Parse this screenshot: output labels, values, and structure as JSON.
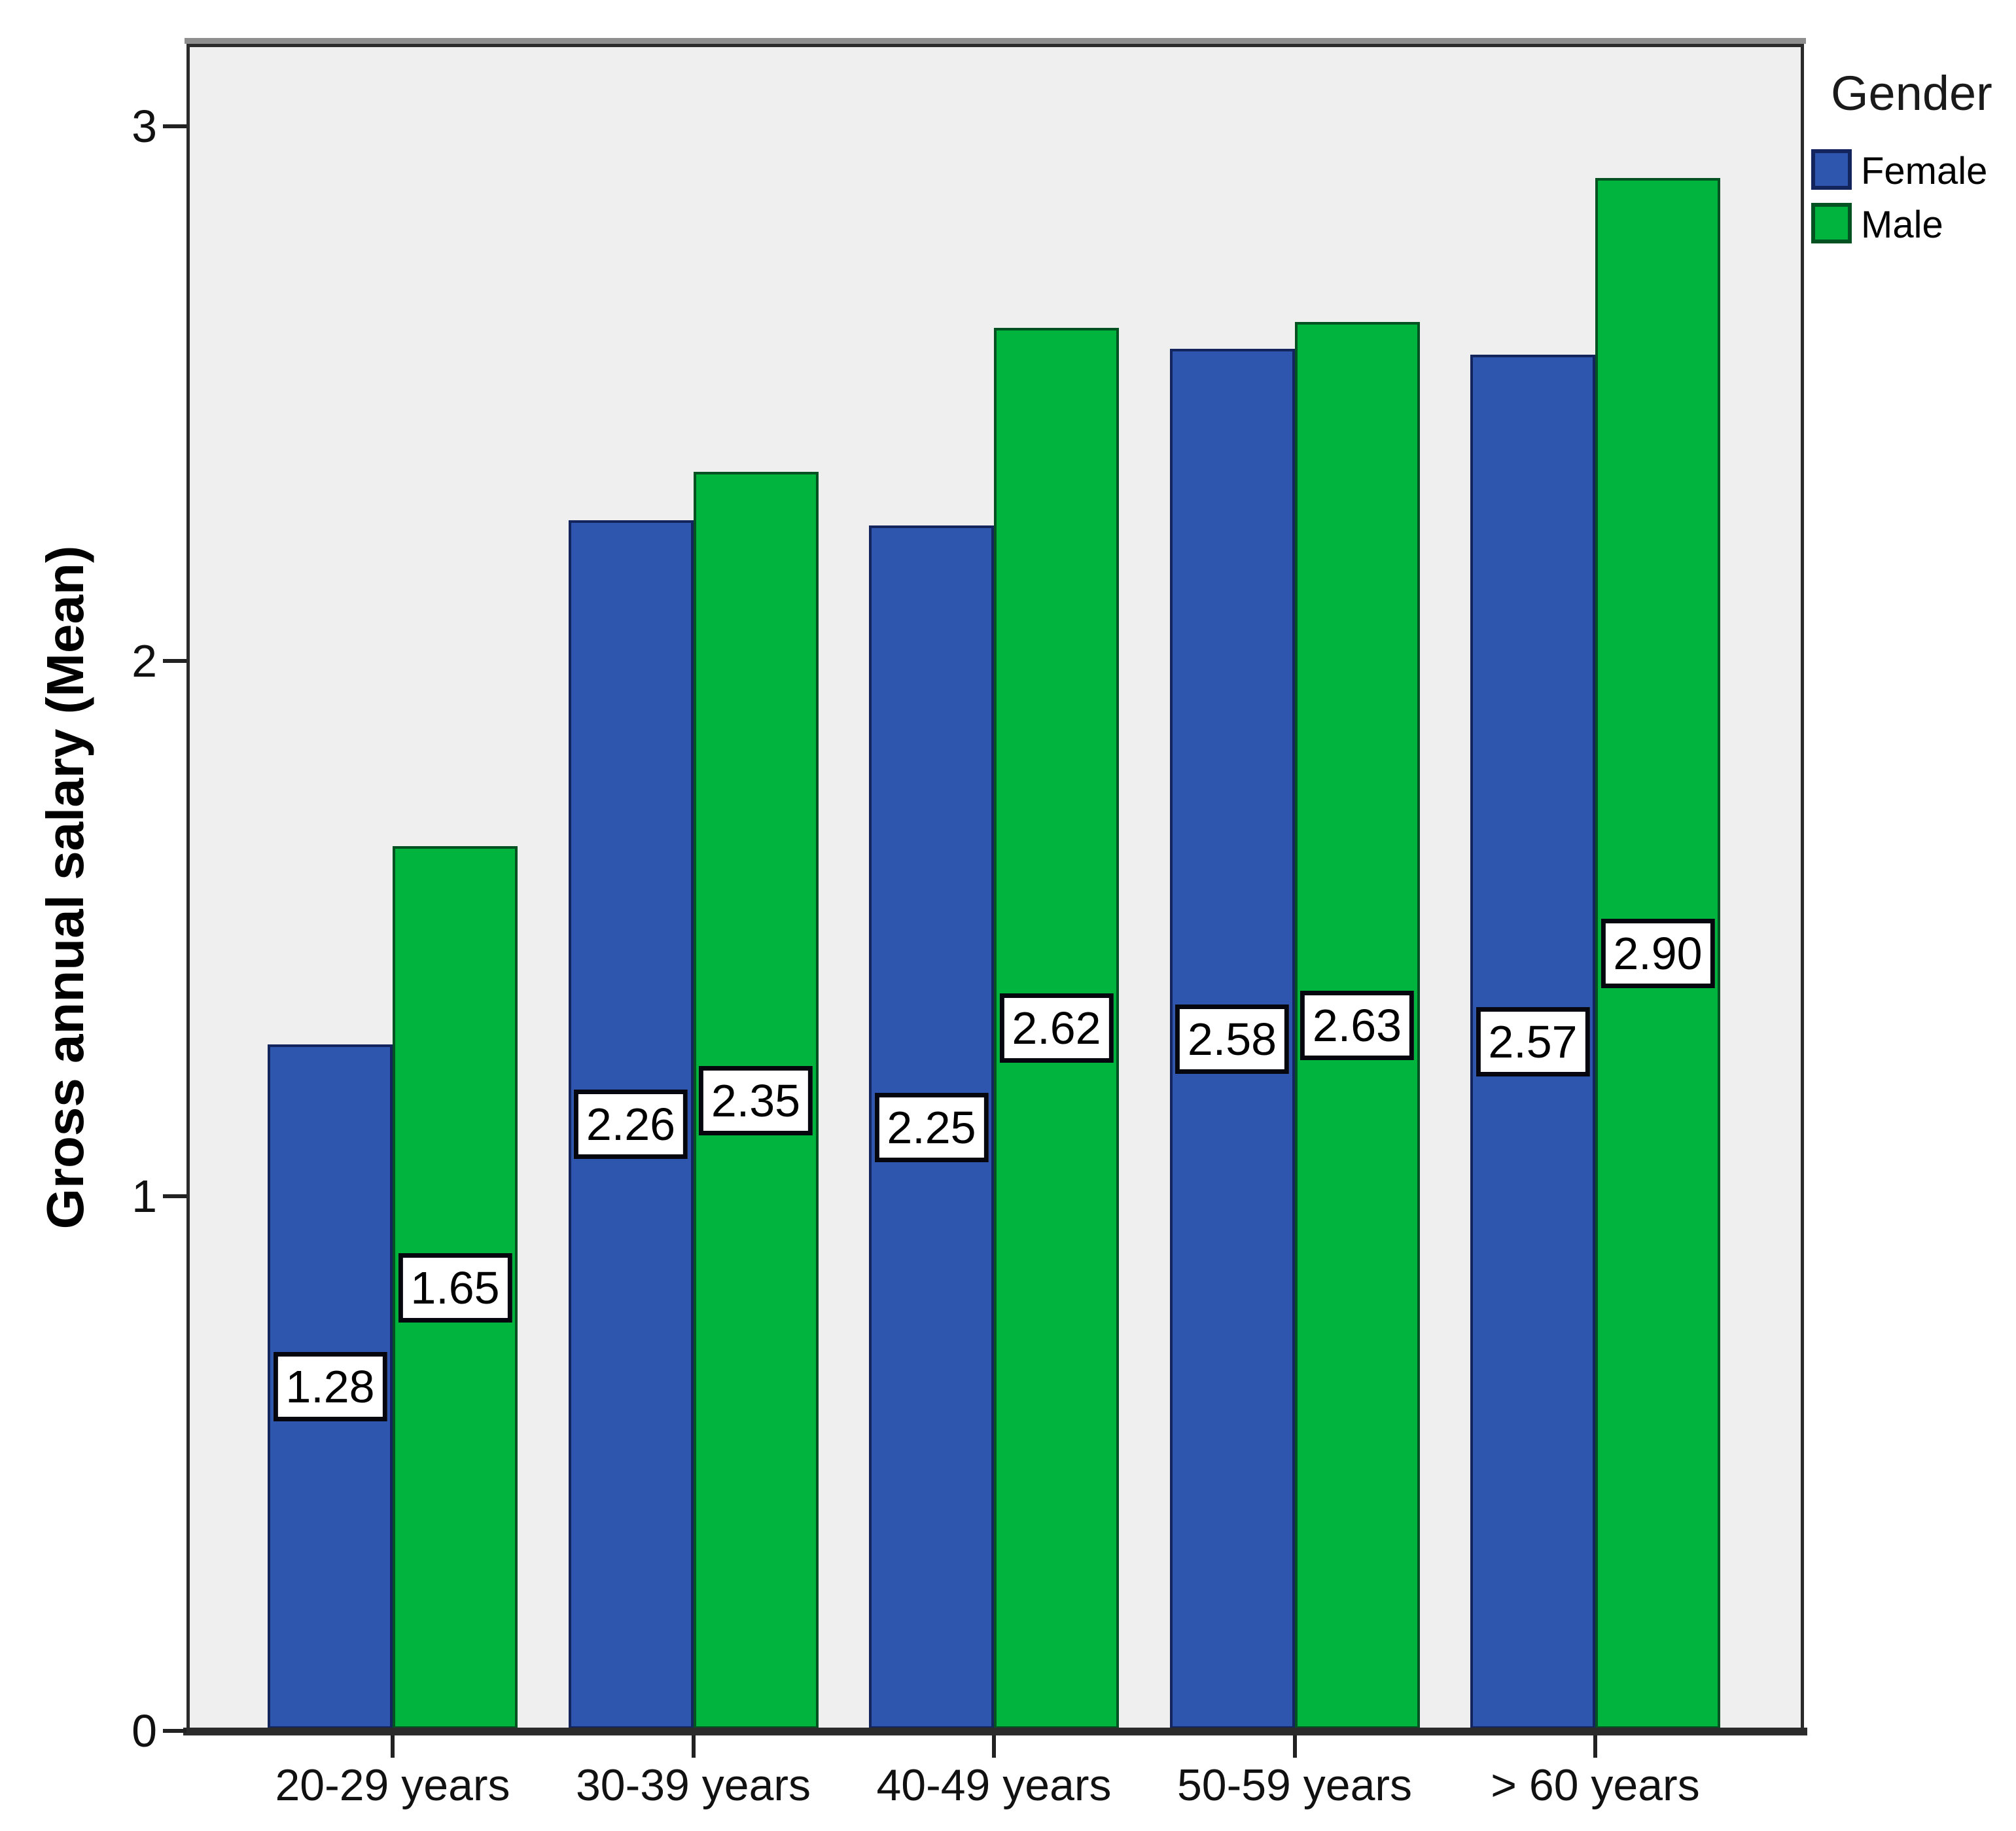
{
  "chart_data": {
    "type": "bar",
    "title": "",
    "xlabel": "",
    "ylabel": "Gross annual salary (Mean)",
    "categories": [
      "20-29 years",
      "30-39 years",
      "40-49 years",
      "50-59 years",
      "> 60 years"
    ],
    "series": [
      {
        "name": "Female",
        "color": "#2F56AE",
        "border_color": "#13255C",
        "values": [
          1.28,
          2.26,
          2.25,
          2.58,
          2.57
        ],
        "labels": [
          "1.28",
          "2.26",
          "2.25",
          "2.58",
          "2.57"
        ]
      },
      {
        "name": "Male",
        "color": "#00B43E",
        "border_color": "#045222",
        "values": [
          1.65,
          2.35,
          2.62,
          2.63,
          2.9
        ],
        "labels": [
          "1.65",
          "2.35",
          "2.62",
          "2.63",
          "2.90"
        ]
      }
    ],
    "y_ticks": [
      "0",
      "1",
      "2",
      "3"
    ],
    "ylim": [
      0,
      3.15
    ],
    "grid": false,
    "legend_title": "Gender",
    "legend_position": "top-right",
    "plot_background": "#EFEFEF",
    "value_label_style": "white box, black border, placed at bar mid-height"
  }
}
